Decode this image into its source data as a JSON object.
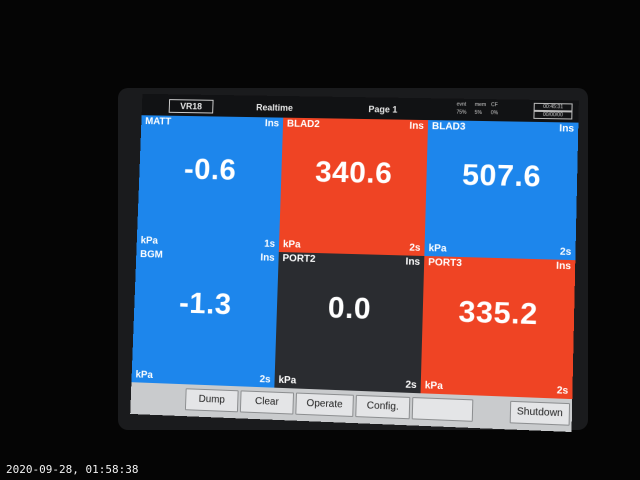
{
  "titlebar": {
    "model": "VR18",
    "mode": "Realtime",
    "page": "Page 1",
    "status_labels": [
      "evnt",
      "mem",
      "CF"
    ],
    "status_values": [
      "75%",
      "5%",
      "0%"
    ],
    "clock_time": "00:45:31",
    "clock_date": "00/00/00"
  },
  "panels": [
    {
      "name": "MATT",
      "ins": "Ins",
      "value": "-0.6",
      "unit": "kPa",
      "interval": "1s",
      "color": "#1d86ec"
    },
    {
      "name": "BLAD2",
      "ins": "Ins",
      "value": "340.6",
      "unit": "kPa",
      "interval": "2s",
      "color": "#ef4424"
    },
    {
      "name": "BLAD3",
      "ins": "Ins",
      "value": "507.6",
      "unit": "kPa",
      "interval": "2s",
      "color": "#1d86ec"
    },
    {
      "name": "BGM",
      "ins": "Ins",
      "value": "-1.3",
      "unit": "kPa",
      "interval": "2s",
      "color": "#1d86ec"
    },
    {
      "name": "PORT2",
      "ins": "Ins",
      "value": "0.0",
      "unit": "kPa",
      "interval": "2s",
      "color": "#2a2c30"
    },
    {
      "name": "PORT3",
      "ins": "Ins",
      "value": "335.2",
      "unit": "kPa",
      "interval": "2s",
      "color": "#ef4424"
    }
  ],
  "toolbar": {
    "buttons": [
      "Dump",
      "Clear",
      "Operate",
      "Config.",
      "",
      "Shutdown"
    ]
  },
  "overlay": {
    "timestamp": "2020-09-28, 01:58:38"
  }
}
